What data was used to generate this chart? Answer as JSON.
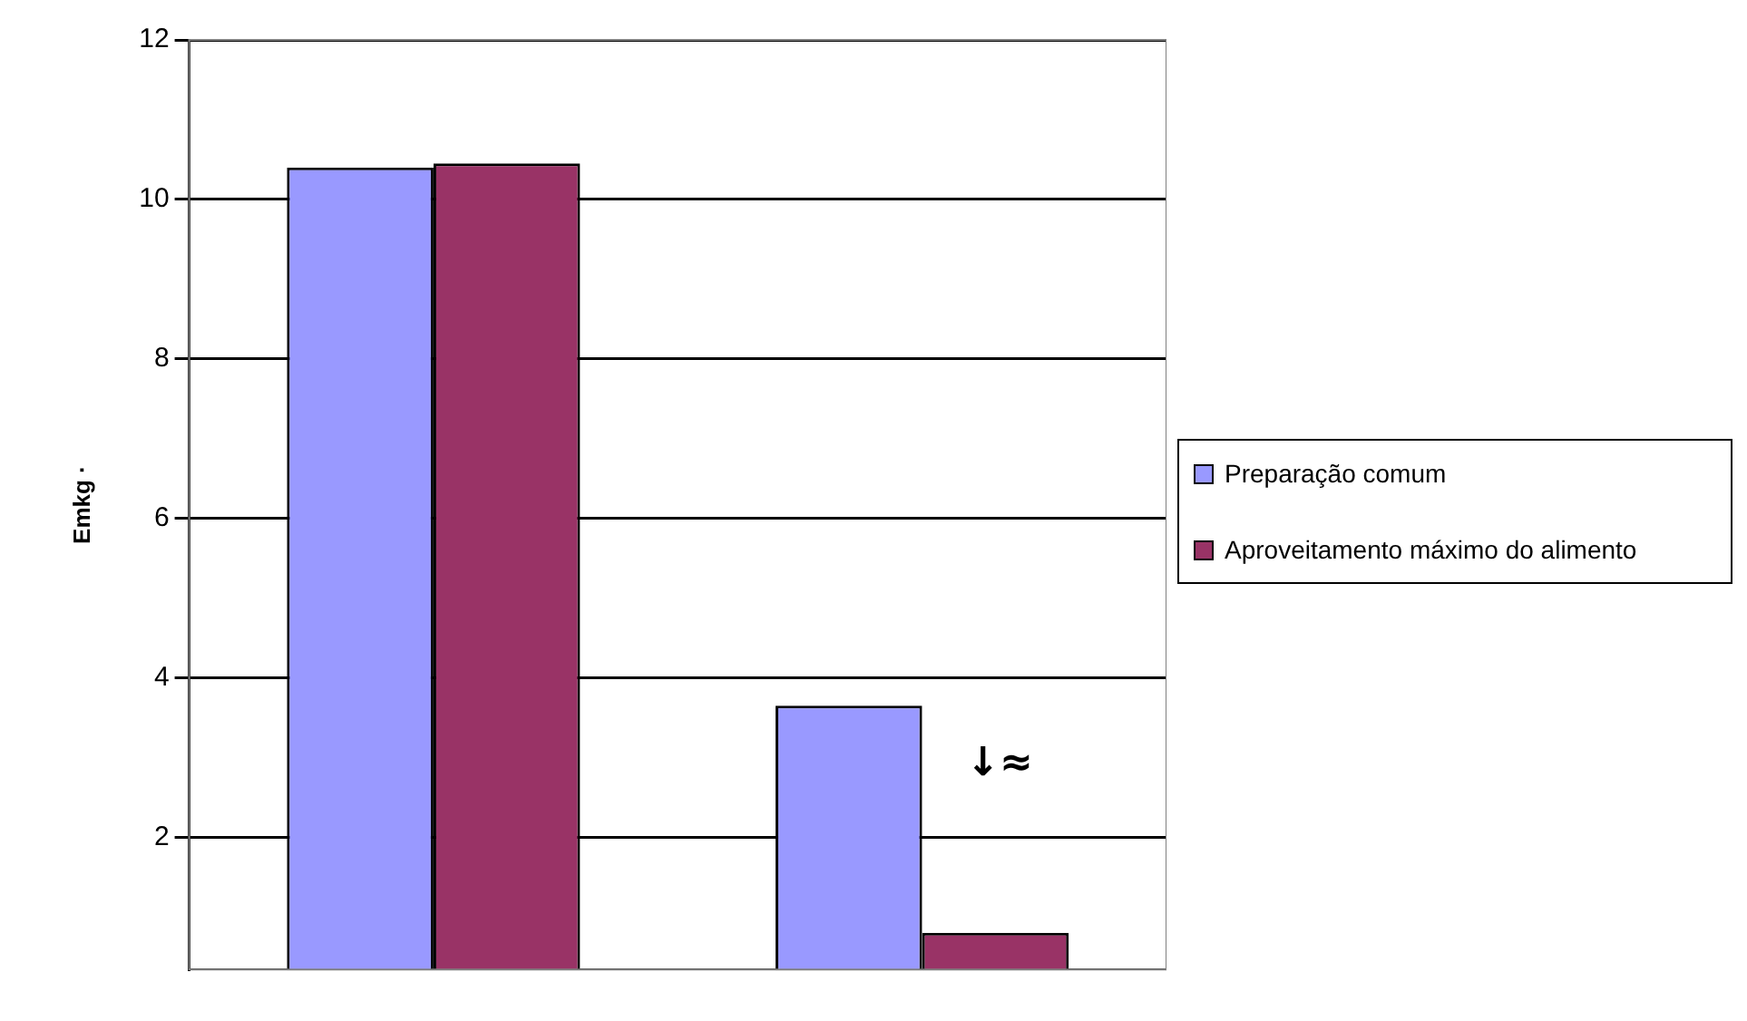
{
  "chart_data": {
    "type": "bar",
    "ylabel": "Emkg ·",
    "categories": [
      null,
      null
    ],
    "series": [
      {
        "name": "Preparação comum",
        "color": "#9999ff",
        "values": [
          10.4,
          3.65
        ]
      },
      {
        "name": "Aproveitamento máximo do alimento",
        "color": "#993366",
        "values": [
          10.45,
          0.8
        ]
      }
    ],
    "ylim": [
      0.34,
      12
    ],
    "yticks": [
      2,
      4,
      6,
      8,
      10,
      12
    ],
    "grid": "y",
    "legend": "right",
    "annotations": [
      "↓≈"
    ]
  }
}
